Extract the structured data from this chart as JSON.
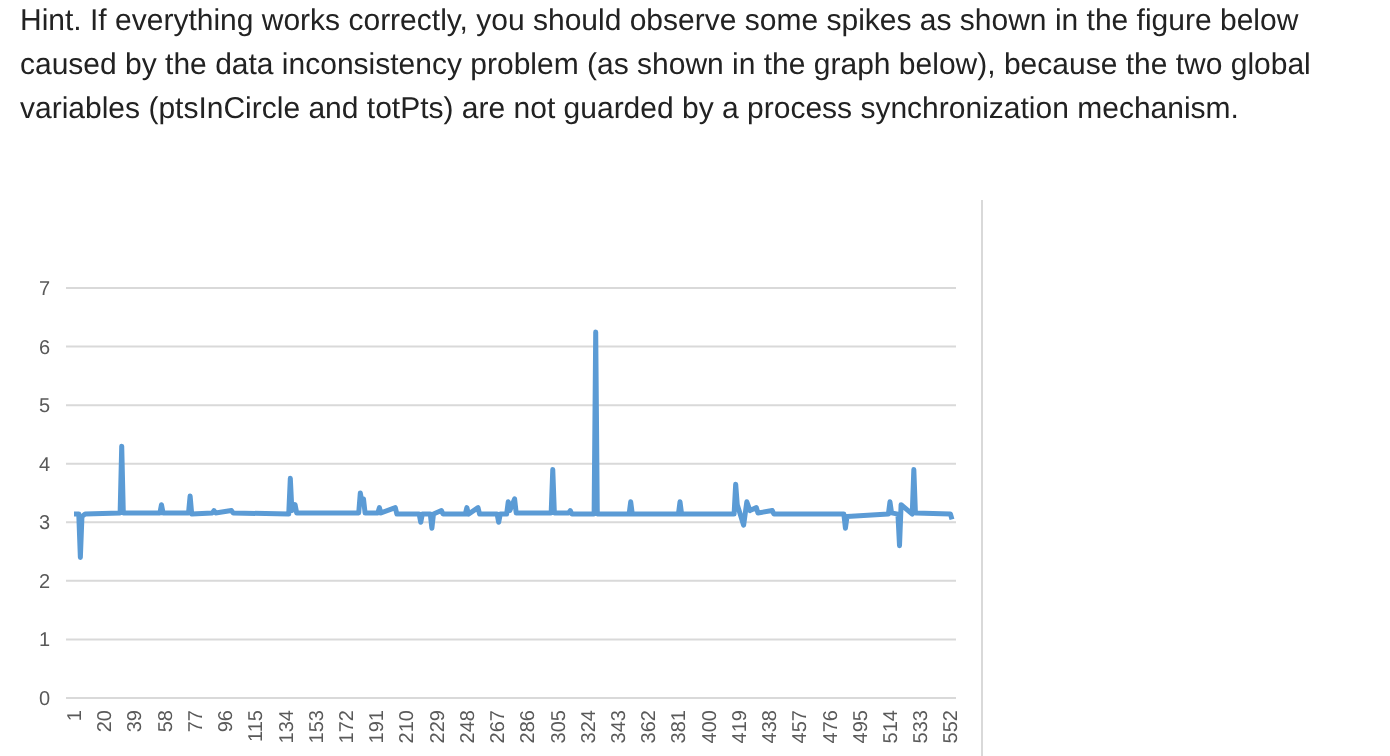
{
  "chart_data": {
    "type": "line",
    "title": "Hint. If everything works correctly, you should observe some spikes as shown in the figure below caused by the data inconsistency problem (as shown in the graph below), because the two global variables (ptsInCircle and totPts) are not guarded by a process synchronization mechanism.",
    "xlim": [
      1,
      553
    ],
    "xticks": [
      1,
      20,
      39,
      58,
      77,
      96,
      115,
      134,
      153,
      172,
      191,
      210,
      229,
      248,
      267,
      286,
      305,
      324,
      343,
      362,
      381,
      400,
      419,
      438,
      457,
      476,
      495,
      514,
      533,
      552
    ],
    "ylim": [
      0,
      7
    ],
    "yticks": [
      0,
      1,
      2,
      3,
      4,
      5,
      6,
      7
    ],
    "grid": "y",
    "marker": "none",
    "line_style": "solid",
    "series": [
      {
        "color": "#5b9bd5",
        "x": [
          1,
          4,
          5,
          6,
          8,
          30,
          31,
          32,
          55,
          56,
          57,
          73,
          74,
          75,
          88,
          89,
          90,
          100,
          101,
          136,
          137,
          138,
          140,
          141,
          180,
          181,
          182,
          183,
          184,
          192,
          193,
          194,
          203,
          204,
          218,
          219,
          220,
          225,
          226,
          227,
          232,
          233,
          247,
          248,
          249,
          255,
          256,
          267,
          268,
          269,
          273,
          274,
          275,
          278,
          279,
          301,
          302,
          303,
          312,
          313,
          314,
          328,
          329,
          330,
          350,
          351,
          352,
          381,
          382,
          383,
          416,
          417,
          418,
          422,
          424,
          426,
          430,
          431,
          440,
          441,
          485,
          486,
          487,
          513,
          514,
          515,
          519,
          520,
          521,
          528,
          529,
          530,
          552,
          553
        ],
        "values": [
          3.14,
          3.14,
          2.4,
          3.1,
          3.14,
          3.16,
          4.3,
          3.16,
          3.16,
          3.3,
          3.16,
          3.16,
          3.45,
          3.14,
          3.16,
          3.2,
          3.16,
          3.2,
          3.16,
          3.14,
          3.75,
          3.2,
          3.3,
          3.16,
          3.16,
          3.5,
          3.35,
          3.4,
          3.16,
          3.16,
          3.25,
          3.16,
          3.25,
          3.14,
          3.14,
          3.0,
          3.14,
          3.14,
          2.9,
          3.14,
          3.2,
          3.14,
          3.14,
          3.25,
          3.14,
          3.25,
          3.14,
          3.14,
          3.0,
          3.14,
          3.14,
          3.35,
          3.2,
          3.4,
          3.16,
          3.16,
          3.9,
          3.16,
          3.16,
          3.2,
          3.14,
          3.14,
          6.25,
          3.14,
          3.14,
          3.35,
          3.14,
          3.14,
          3.35,
          3.14,
          3.14,
          3.65,
          3.3,
          2.95,
          3.35,
          3.2,
          3.25,
          3.16,
          3.2,
          3.14,
          3.14,
          2.9,
          3.1,
          3.14,
          3.35,
          3.16,
          3.14,
          2.6,
          3.3,
          3.14,
          3.9,
          3.16,
          3.14,
          3.05
        ]
      }
    ]
  }
}
